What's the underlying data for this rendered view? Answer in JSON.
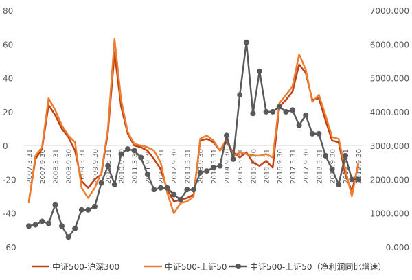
{
  "chart_data": {
    "type": "line",
    "x": [
      "2007.3.31",
      "2007.6.30",
      "2007.9.30",
      "2007.12.31",
      "2008.3.31",
      "2008.6.30",
      "2008.9.30",
      "2008.12.31",
      "2009.3.31",
      "2009.6.30",
      "2009.9.30",
      "2009.12.31",
      "2010.3.31",
      "2010.6.30",
      "2010.9.30",
      "2010.12.31",
      "2011.3.31",
      "2011.6.30",
      "2011.9.30",
      "2011.12.31",
      "2012.3.31",
      "2012.6.30",
      "2012.9.30",
      "2012.12.31",
      "2013.3.31",
      "2013.6.30",
      "2013.9.30",
      "2013.12.31",
      "2014.3.31",
      "2014.6.30",
      "2014.9.30",
      "2014.12.31",
      "2015.3.31",
      "2015.6.30",
      "2015.9.30",
      "2015.12.31",
      "2016.3.31",
      "2016.6.30",
      "2016.9.30",
      "2016.12.31",
      "2017.3.31",
      "2017.6.30",
      "2017.9.30",
      "2017.12.31",
      "2018.3.31",
      "2018.6.30",
      "2018.9.30",
      "2018.12.31",
      "2019.3.31",
      "2019.6.30",
      "2019.9.30"
    ],
    "x_tick_labels": [
      "2007.3.31",
      "2007.9.30",
      "2008.3.31",
      "2008.9.30",
      "2009.3.31",
      "2009.9.30",
      "2010.3.31",
      "2010.9.30",
      "2011.3.31",
      "2011.9.30",
      "2012.3.31",
      "2012.9.30",
      "2013.3.31",
      "2013.9.30",
      "2014.3.31",
      "2014.9.30",
      "2015.3.31",
      "2015.9.30",
      "2016.3.31",
      "2016.9.30",
      "2017.3.31",
      "2017.9.30",
      "2018.3.31",
      "2018.9.30",
      "2019.3.31",
      "2019.9.30"
    ],
    "left_axis": {
      "min": -60,
      "max": 80,
      "step": 20,
      "tick_labels": [
        "-60",
        "-40",
        "-20",
        "0",
        "20",
        "40",
        "60",
        "80"
      ]
    },
    "right_axis": {
      "min": 0,
      "max": 7000,
      "step": 1000,
      "tick_labels": [
        "0.000",
        "1000.000",
        "2000.000",
        "3000.000",
        "4000.000",
        "5000.000",
        "6000.000",
        "7000.000"
      ]
    },
    "series": [
      {
        "name": "中证500-沪深300",
        "axis": "left",
        "color": "#c0400f",
        "marker": "none",
        "values": [
          -33,
          -8,
          -2,
          24,
          18,
          10,
          5,
          -3,
          -21,
          -25,
          -20,
          -17,
          8,
          55,
          23,
          7,
          0,
          -1,
          -3,
          -8,
          -14,
          -26,
          -33,
          -32,
          -31,
          -29,
          3,
          4,
          2,
          -3,
          2,
          -4,
          -7,
          -4,
          -10,
          -12,
          -9,
          -13,
          23,
          27,
          32,
          48,
          43,
          27,
          28,
          15,
          3,
          2,
          -17,
          -27,
          -11
        ],
        "legend_label": "中证500-沪深300"
      },
      {
        "name": "中证500-上证50",
        "axis": "left",
        "color": "#ed7d31",
        "marker": "none",
        "values": [
          -34,
          -6,
          -1,
          28,
          21,
          12,
          6,
          2,
          -25,
          -31,
          -25,
          -16,
          10,
          63,
          27,
          8,
          1,
          0,
          -1,
          -3,
          -10,
          -28,
          -40,
          -34,
          -33,
          -30,
          4,
          6,
          3,
          -3,
          4,
          -6,
          -4,
          -5,
          -6,
          -6,
          -5,
          -7,
          25,
          30,
          35,
          54,
          45,
          26,
          30,
          18,
          5,
          4,
          -14,
          -30,
          -10
        ],
        "legend_label": "中证500-上证50"
      },
      {
        "name": "中证500-上证50（净利润同比增速）",
        "axis": "right",
        "color": "#595959",
        "marker": "circle",
        "values": [
          620,
          660,
          760,
          700,
          1250,
          620,
          300,
          550,
          1100,
          1100,
          1200,
          1900,
          2400,
          1850,
          2750,
          2900,
          2850,
          2650,
          2150,
          1700,
          1750,
          1750,
          1550,
          1400,
          1700,
          1700,
          2200,
          2250,
          2350,
          2400,
          3300,
          2600,
          4500,
          6050,
          3950,
          5200,
          4000,
          4000,
          4150,
          4000,
          4050,
          3600,
          3900,
          3350,
          3350,
          2700,
          2300,
          1850,
          2700,
          2000,
          2000
        ],
        "legend_label": "中证500-上证50（净利润同比增速）"
      }
    ],
    "grid": "none",
    "legend_position": "bottom"
  }
}
